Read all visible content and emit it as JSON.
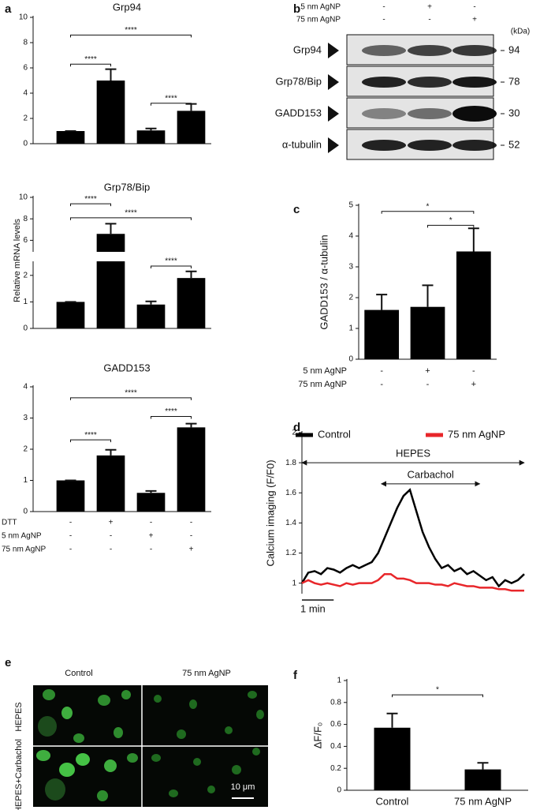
{
  "panel_a": {
    "label": "a",
    "ylabel": "Relative mRNA levels",
    "conditions": [
      {
        "name": "DTT",
        "signs": [
          "-",
          "+",
          "-",
          "-"
        ]
      },
      {
        "name": "5 nm AgNP",
        "signs": [
          "-",
          "-",
          "+",
          "-"
        ]
      },
      {
        "name": "75 nm AgNP",
        "signs": [
          "-",
          "-",
          "-",
          "+"
        ]
      }
    ]
  },
  "chart_data": [
    {
      "type": "bar",
      "title": "Grp94",
      "categories": [
        null,
        null,
        null,
        null
      ],
      "values": [
        1,
        5.0,
        1.05,
        2.6
      ],
      "errors": [
        0,
        0.9,
        0.15,
        0.55
      ],
      "color": "#000000",
      "ylim": [
        0,
        10
      ],
      "yticks": [
        0,
        2,
        4,
        6,
        8,
        10
      ],
      "brackets": [
        {
          "from": 0,
          "to": 3,
          "y": 8.6,
          "label": "****"
        },
        {
          "from": 0,
          "to": 1,
          "y": 6.3,
          "label": "****"
        },
        {
          "from": 2,
          "to": 3,
          "y": 3.2,
          "label": "****"
        }
      ]
    },
    {
      "type": "bar",
      "title": "Grp78/Bip",
      "categories": [
        null,
        null,
        null,
        null
      ],
      "values": [
        1,
        6.6,
        0.9,
        1.9
      ],
      "errors": [
        0,
        0.95,
        0.12,
        0.25
      ],
      "color": "#000000",
      "ylim": [
        0,
        10
      ],
      "ybreak": [
        2.5,
        5
      ],
      "yticks": [
        0,
        1,
        2,
        6,
        8,
        10
      ],
      "brackets": [
        {
          "from": 0,
          "to": 3,
          "y": 8.1,
          "label": "****"
        },
        {
          "from": 0,
          "to": 1,
          "y": 9.4,
          "label": "****"
        },
        {
          "from": 2,
          "to": 3,
          "y": 2.35,
          "label": "****"
        }
      ]
    },
    {
      "type": "bar",
      "title": "GADD153",
      "categories": [
        null,
        null,
        null,
        null
      ],
      "values": [
        1,
        1.8,
        0.6,
        2.7
      ],
      "errors": [
        0,
        0.18,
        0.06,
        0.12
      ],
      "color": "#000000",
      "ylim": [
        0,
        4
      ],
      "yticks": [
        0,
        1,
        2,
        3,
        4
      ],
      "brackets": [
        {
          "from": 0,
          "to": 3,
          "y": 3.65,
          "label": "****"
        },
        {
          "from": 2,
          "to": 3,
          "y": 3.05,
          "label": "****"
        },
        {
          "from": 0,
          "to": 1,
          "y": 2.3,
          "label": "****"
        }
      ]
    },
    {
      "type": "bar",
      "panel": "c",
      "ylabel": "GADD153 / α-tubulin",
      "categories": [
        null,
        null,
        null
      ],
      "values": [
        1.6,
        1.7,
        3.5
      ],
      "errors": [
        0.5,
        0.7,
        0.75
      ],
      "color": "#000000",
      "ylim": [
        0,
        5
      ],
      "yticks": [
        0,
        1,
        2,
        3,
        4,
        5
      ],
      "brackets": [
        {
          "from": 0,
          "to": 2,
          "y": 4.8,
          "label": "*"
        },
        {
          "from": 1,
          "to": 2,
          "y": 4.35,
          "label": "*"
        }
      ],
      "conditions": [
        {
          "name": "5 nm AgNP",
          "signs": [
            "-",
            "+",
            "-"
          ]
        },
        {
          "name": "75 nm AgNP",
          "signs": [
            "-",
            "-",
            "+"
          ]
        }
      ]
    },
    {
      "type": "line",
      "panel": "d",
      "ylabel": "Calcium imaging (F/F0)",
      "x": [
        0,
        0.2,
        0.4,
        0.6,
        0.8,
        1,
        1.2,
        1.4,
        1.6,
        1.8,
        2,
        2.2,
        2.4,
        2.6,
        2.8,
        3,
        3.2,
        3.4,
        3.6,
        3.8,
        4,
        4.2,
        4.4,
        4.6,
        4.8,
        5,
        5.2,
        5.4,
        5.6,
        5.8,
        6,
        6.2,
        6.4,
        6.6,
        6.8,
        7
      ],
      "xlim": [
        0,
        7
      ],
      "series": [
        {
          "name": "Control",
          "color": "#000000",
          "values": [
            1.0,
            1.07,
            1.08,
            1.06,
            1.1,
            1.09,
            1.07,
            1.1,
            1.12,
            1.1,
            1.12,
            1.14,
            1.2,
            1.3,
            1.4,
            1.5,
            1.58,
            1.62,
            1.48,
            1.34,
            1.24,
            1.16,
            1.1,
            1.12,
            1.08,
            1.1,
            1.06,
            1.08,
            1.05,
            1.02,
            1.04,
            0.98,
            1.02,
            1.0,
            1.02,
            1.06
          ]
        },
        {
          "name": "75 nm AgNP",
          "color": "#e8262a",
          "values": [
            1.0,
            1.02,
            1.0,
            0.99,
            1.0,
            0.99,
            0.98,
            1.0,
            0.99,
            1.0,
            1.0,
            1.0,
            1.02,
            1.06,
            1.06,
            1.03,
            1.03,
            1.02,
            1.0,
            1.0,
            1.0,
            0.99,
            0.99,
            0.98,
            1.0,
            0.99,
            0.98,
            0.98,
            0.97,
            0.97,
            0.97,
            0.96,
            0.96,
            0.95,
            0.95,
            0.95
          ]
        }
      ],
      "ylim": [
        0.93,
        2
      ],
      "yticks": [
        1,
        1.2,
        1.4,
        1.6,
        1.8,
        2
      ],
      "spans": [
        {
          "label": "HEPES",
          "x": [
            0,
            7
          ],
          "y": 1.8
        },
        {
          "label": "Carbachol",
          "x": [
            2.5,
            5.6
          ],
          "y": 1.66
        }
      ],
      "scale_bar": {
        "label": "1 min",
        "length": 1
      }
    },
    {
      "type": "bar",
      "panel": "f",
      "ylabel": "ΔF/F₀",
      "categories": [
        "Control",
        "75 nm AgNP"
      ],
      "values": [
        0.57,
        0.19
      ],
      "errors": [
        0.13,
        0.06
      ],
      "color": "#000000",
      "ylim": [
        0,
        1
      ],
      "yticks": [
        0,
        0.2,
        0.4,
        0.6,
        0.8,
        1
      ],
      "brackets": [
        {
          "from": 0,
          "to": 1,
          "y": 0.87,
          "label": "*"
        }
      ]
    }
  ],
  "panel_b": {
    "label": "b",
    "treatments": [
      {
        "name": "5 nm AgNP",
        "signs": [
          "-",
          "+",
          "-"
        ]
      },
      {
        "name": "75 nm AgNP",
        "signs": [
          "-",
          "-",
          "+"
        ]
      }
    ],
    "unit": "(kDa)",
    "rows": [
      {
        "protein": "Grp94",
        "kda": 94
      },
      {
        "protein": "Grp78/Bip",
        "kda": 78
      },
      {
        "protein": "GADD153",
        "kda": 30
      },
      {
        "protein": "α-tubulin",
        "kda": 52
      }
    ]
  },
  "panel_e": {
    "label": "e",
    "columns": [
      "Control",
      "75 nm AgNP"
    ],
    "rows": [
      "HEPES",
      "HEPES+Carbachol"
    ],
    "scale_bar": "10 μm"
  }
}
